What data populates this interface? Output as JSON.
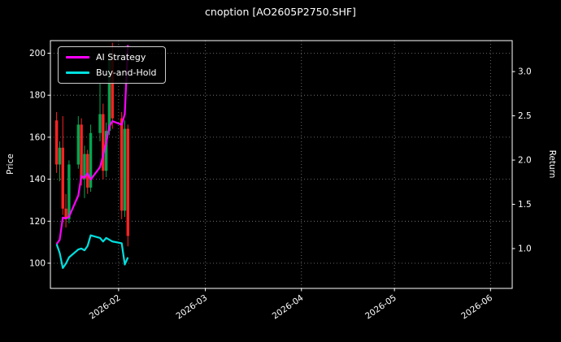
{
  "title": "cnoption [AO2605P2750.SHF]",
  "legend": {
    "items": [
      {
        "label": "AI Strategy",
        "color": "#ff00ff"
      },
      {
        "label": "Buy-and-Hold",
        "color": "#00e0e0"
      }
    ]
  },
  "axes": {
    "left_label": "Price",
    "right_label": "Return"
  },
  "colors": {
    "background": "#000000",
    "text": "#ffffff",
    "grid": "#9a9a9a",
    "axis_border": "#ffffff",
    "candle_up": "#00a650",
    "candle_down": "#ff2222",
    "ai_line": "#ff00ff",
    "bnh_line": "#00e0e0"
  },
  "chart_data": {
    "type": "candlestick_with_lines",
    "title": "cnoption [AO2605P2750.SHF]",
    "x_axis": {
      "range": [
        "2026-01-10",
        "2026-06-08"
      ],
      "ticks": [
        {
          "label": "2026-02",
          "date": "2026-02-01"
        },
        {
          "label": "2026-03",
          "date": "2026-03-01"
        },
        {
          "label": "2026-04",
          "date": "2026-04-01"
        },
        {
          "label": "2026-05",
          "date": "2026-05-01"
        },
        {
          "label": "2026-06",
          "date": "2026-06-01"
        }
      ]
    },
    "price_axis": {
      "label": "Price",
      "range": [
        88,
        206
      ],
      "ticks": [
        100,
        120,
        140,
        160,
        180,
        200
      ]
    },
    "return_axis": {
      "label": "Return",
      "range": [
        0.55,
        3.35
      ],
      "ticks": [
        1.0,
        1.5,
        2.0,
        2.5,
        3.0
      ]
    },
    "grid": {
      "on": true,
      "style": "dotted",
      "color": "#9a9a9a"
    },
    "legend_position": "upper-left",
    "dates": [
      "2026-01-12",
      "2026-01-13",
      "2026-01-14",
      "2026-01-15",
      "2026-01-16",
      "2026-01-19",
      "2026-01-20",
      "2026-01-21",
      "2026-01-22",
      "2026-01-23",
      "2026-01-26",
      "2026-01-27",
      "2026-01-28",
      "2026-01-29",
      "2026-01-30",
      "2026-02-02",
      "2026-02-03",
      "2026-02-04"
    ],
    "ohlc": [
      [
        168,
        172,
        143,
        147
      ],
      [
        147,
        158,
        139,
        155
      ],
      [
        155,
        170,
        123,
        126
      ],
      [
        126,
        133,
        117,
        121
      ],
      [
        121,
        149,
        119,
        147
      ],
      [
        147,
        170,
        145,
        166
      ],
      [
        166,
        169,
        137,
        140
      ],
      [
        140,
        156,
        131,
        152
      ],
      [
        152,
        154,
        133,
        136
      ],
      [
        136,
        166,
        134,
        162
      ],
      [
        162,
        186,
        158,
        171
      ],
      [
        171,
        176,
        140,
        144
      ],
      [
        144,
        167,
        141,
        163
      ],
      [
        163,
        201,
        161,
        197
      ],
      [
        197,
        205,
        164,
        169
      ],
      [
        169,
        172,
        121,
        125
      ],
      [
        125,
        168,
        122,
        164
      ],
      [
        164,
        166,
        108,
        113
      ]
    ],
    "series": [
      {
        "name": "AI Strategy",
        "axis": "return",
        "color": "#ff00ff",
        "values": [
          1.05,
          1.1,
          1.35,
          1.34,
          1.36,
          1.6,
          1.82,
          1.8,
          1.85,
          1.78,
          1.92,
          2.05,
          2.2,
          2.38,
          2.44,
          2.4,
          2.52,
          3.3
        ]
      },
      {
        "name": "Buy-and-Hold",
        "axis": "return",
        "color": "#00e0e0",
        "values": [
          1.05,
          0.95,
          0.78,
          0.83,
          0.9,
          0.99,
          1.0,
          0.98,
          1.03,
          1.15,
          1.12,
          1.08,
          1.12,
          1.1,
          1.08,
          1.06,
          0.82,
          0.9
        ]
      }
    ],
    "candle_colors": {
      "up": "#00a650",
      "down": "#ff2222"
    }
  }
}
